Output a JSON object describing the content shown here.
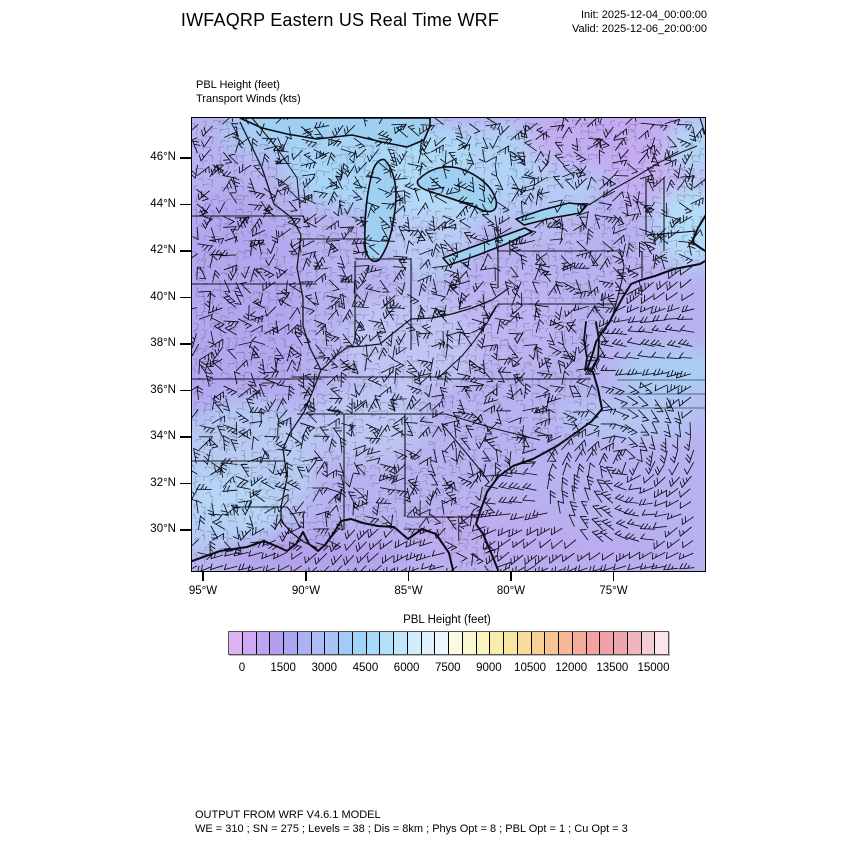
{
  "header": {
    "title": "IWFAQRP Eastern US Real Time WRF",
    "init": "Init: 2025-12-04_00:00:00",
    "valid": "Valid: 2025-12-06_20:00:00"
  },
  "plot": {
    "field_label": "PBL Height   (feet)",
    "wind_label": "Transport Winds   (kts)",
    "lat_labels": [
      "46°N",
      "44°N",
      "42°N",
      "40°N",
      "38°N",
      "36°N",
      "34°N",
      "32°N",
      "30°N"
    ],
    "lon_labels": [
      "95°W",
      "90°W",
      "85°W",
      "80°W",
      "75°W"
    ]
  },
  "colorbar": {
    "title": "PBL Height  (feet)",
    "tick_labels": [
      "0",
      "1500",
      "3000",
      "4500",
      "6000",
      "7500",
      "9000",
      "10500",
      "12000",
      "13500",
      "15000"
    ],
    "colors": [
      "#dcb4f4",
      "#cfa9f3",
      "#c2a2f3",
      "#b49ef2",
      "#aaa6f2",
      "#abb2f4",
      "#aebcf6",
      "#a9c3f7",
      "#a3cbf8",
      "#a2d3f8",
      "#a6daf8",
      "#b2e0f9",
      "#c1e6fa",
      "#d1ecfb",
      "#e0f1fc",
      "#edf6fd",
      "#fbfae2",
      "#faf8d0",
      "#f9f3bf",
      "#f8edae",
      "#f7e5a2",
      "#f7dc9b",
      "#f7d095",
      "#f7c494",
      "#f7b897",
      "#f6ac9b",
      "#f5a19f",
      "#f0a0a6",
      "#eaa7af",
      "#efb6bf",
      "#f5cbd4",
      "#fbe5ec"
    ]
  },
  "footer": {
    "line1": "OUTPUT FROM WRF V4.6.1 MODEL",
    "line2": "WE = 310 ; SN = 275 ; Levels = 38 ; Dis = 8km ; Phys Opt = 8 ; PBL Opt = 1 ; Cu Opt = 3"
  },
  "chart_data": {
    "type": "heatmap",
    "title": "IWFAQRP Eastern US Real Time WRF",
    "field": "PBL Height",
    "field_units": "feet",
    "overlay": "Transport Winds",
    "overlay_units": "kts",
    "init_time": "2025-12-04_00:00:00",
    "valid_time": "2025-12-06_20:00:00",
    "x_axis": {
      "label_ticks": [
        "95°W",
        "90°W",
        "85°W",
        "80°W",
        "75°W"
      ],
      "approx_range_deg_west": [
        95.5,
        70.5
      ]
    },
    "y_axis": {
      "label_ticks": [
        "46°N",
        "44°N",
        "42°N",
        "40°N",
        "38°N",
        "36°N",
        "34°N",
        "32°N",
        "30°N"
      ],
      "approx_range_deg_north": [
        28.3,
        47.7
      ]
    },
    "colorbar_levels_feet": [
      0,
      500,
      1000,
      1500,
      2000,
      2500,
      3000,
      3500,
      4000,
      4500,
      5000,
      5500,
      6000,
      6500,
      7000,
      7500,
      8000,
      8500,
      9000,
      9500,
      10000,
      10500,
      11000,
      11500,
      12000,
      12500,
      13000,
      13500,
      14000,
      14500,
      15000
    ],
    "contour_interval_feet": 500,
    "field_summary": "PBL heights over most of the eastern US domain fall between about 500 and 3000 ft (purple to lavender shades); higher values of roughly 3000-5500 ft (light blue) appear over the upper Great Lakes, the upper Midwest, the central Ohio/Tennessee valleys, the Gulf of Maine and Atlantic streaks; slightly lower pinkish-purple values over the Northeast, Ohio and parts of the Southeast; transport wind barbs of roughly 5-20 kts cover the whole domain",
    "legend_position": "bottom",
    "grid": false
  }
}
